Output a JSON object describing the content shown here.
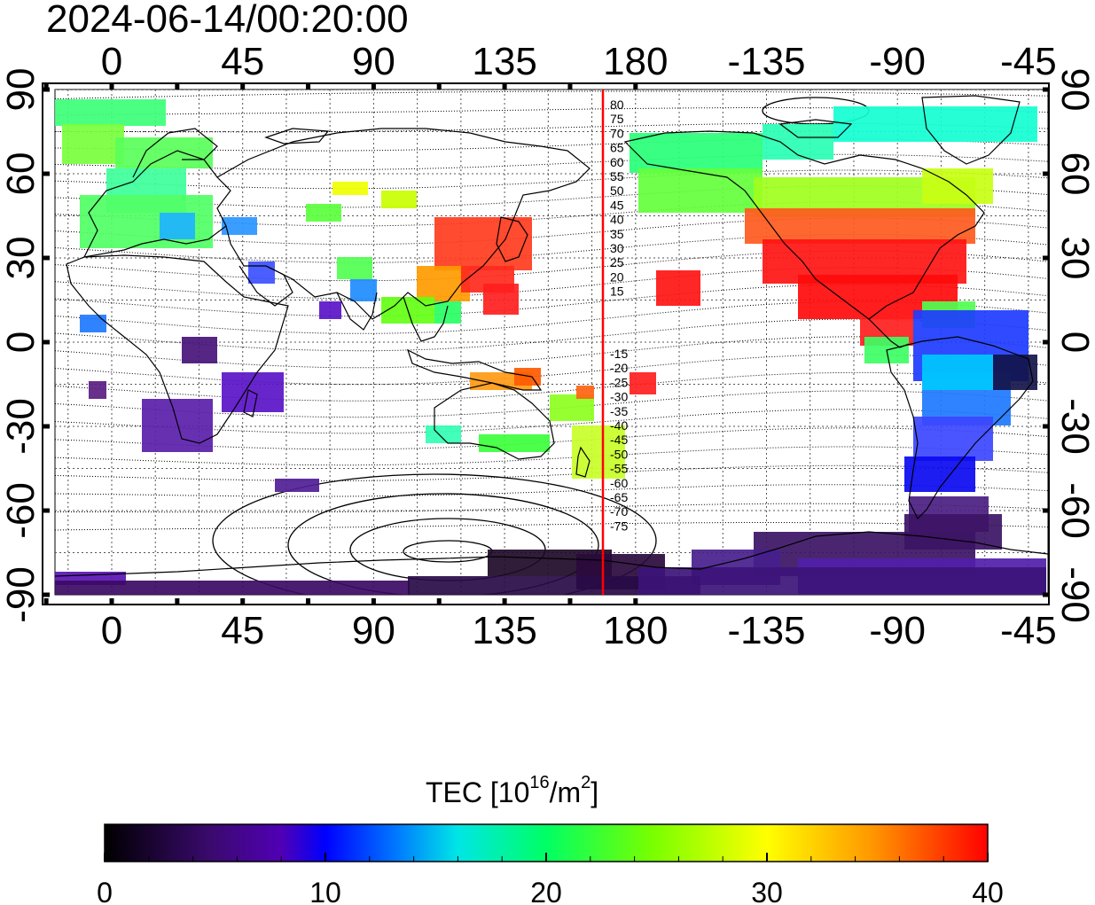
{
  "timestamp": "2024-06-14/00:20:00",
  "x_tick_labels": [
    "0",
    "45",
    "90",
    "135",
    "180",
    "-135",
    "-90",
    "-45"
  ],
  "y_tick_labels": [
    "90",
    "60",
    "30",
    "0",
    "-30",
    "-60",
    "-90"
  ],
  "mag_lat_labels_north": [
    "80",
    "75",
    "70",
    "65",
    "60",
    "55",
    "50",
    "45",
    "40",
    "35",
    "30",
    "25",
    "20",
    "15"
  ],
  "mag_lat_labels_south": [
    "-15",
    "-20",
    "-25",
    "-30",
    "-35",
    "-40",
    "-45",
    "-50",
    "-55",
    "-60",
    "-65",
    "-70",
    "-75"
  ],
  "colorbar": {
    "title_main": "TEC  [10",
    "title_sup": "16",
    "title_mid": "/m",
    "title_sup2": "2",
    "title_end": "]",
    "tick_labels": [
      "0",
      "10",
      "20",
      "30",
      "40"
    ],
    "min": 0,
    "max": 40
  },
  "colors": {
    "terminator_line": "#ff0000",
    "cmap": [
      "#000000",
      "#3a0a6e",
      "#5a00c8",
      "#0000ff",
      "#0078ff",
      "#00e6e6",
      "#00ff64",
      "#78ff00",
      "#ffff00",
      "#ff9600",
      "#ff0000"
    ]
  }
}
